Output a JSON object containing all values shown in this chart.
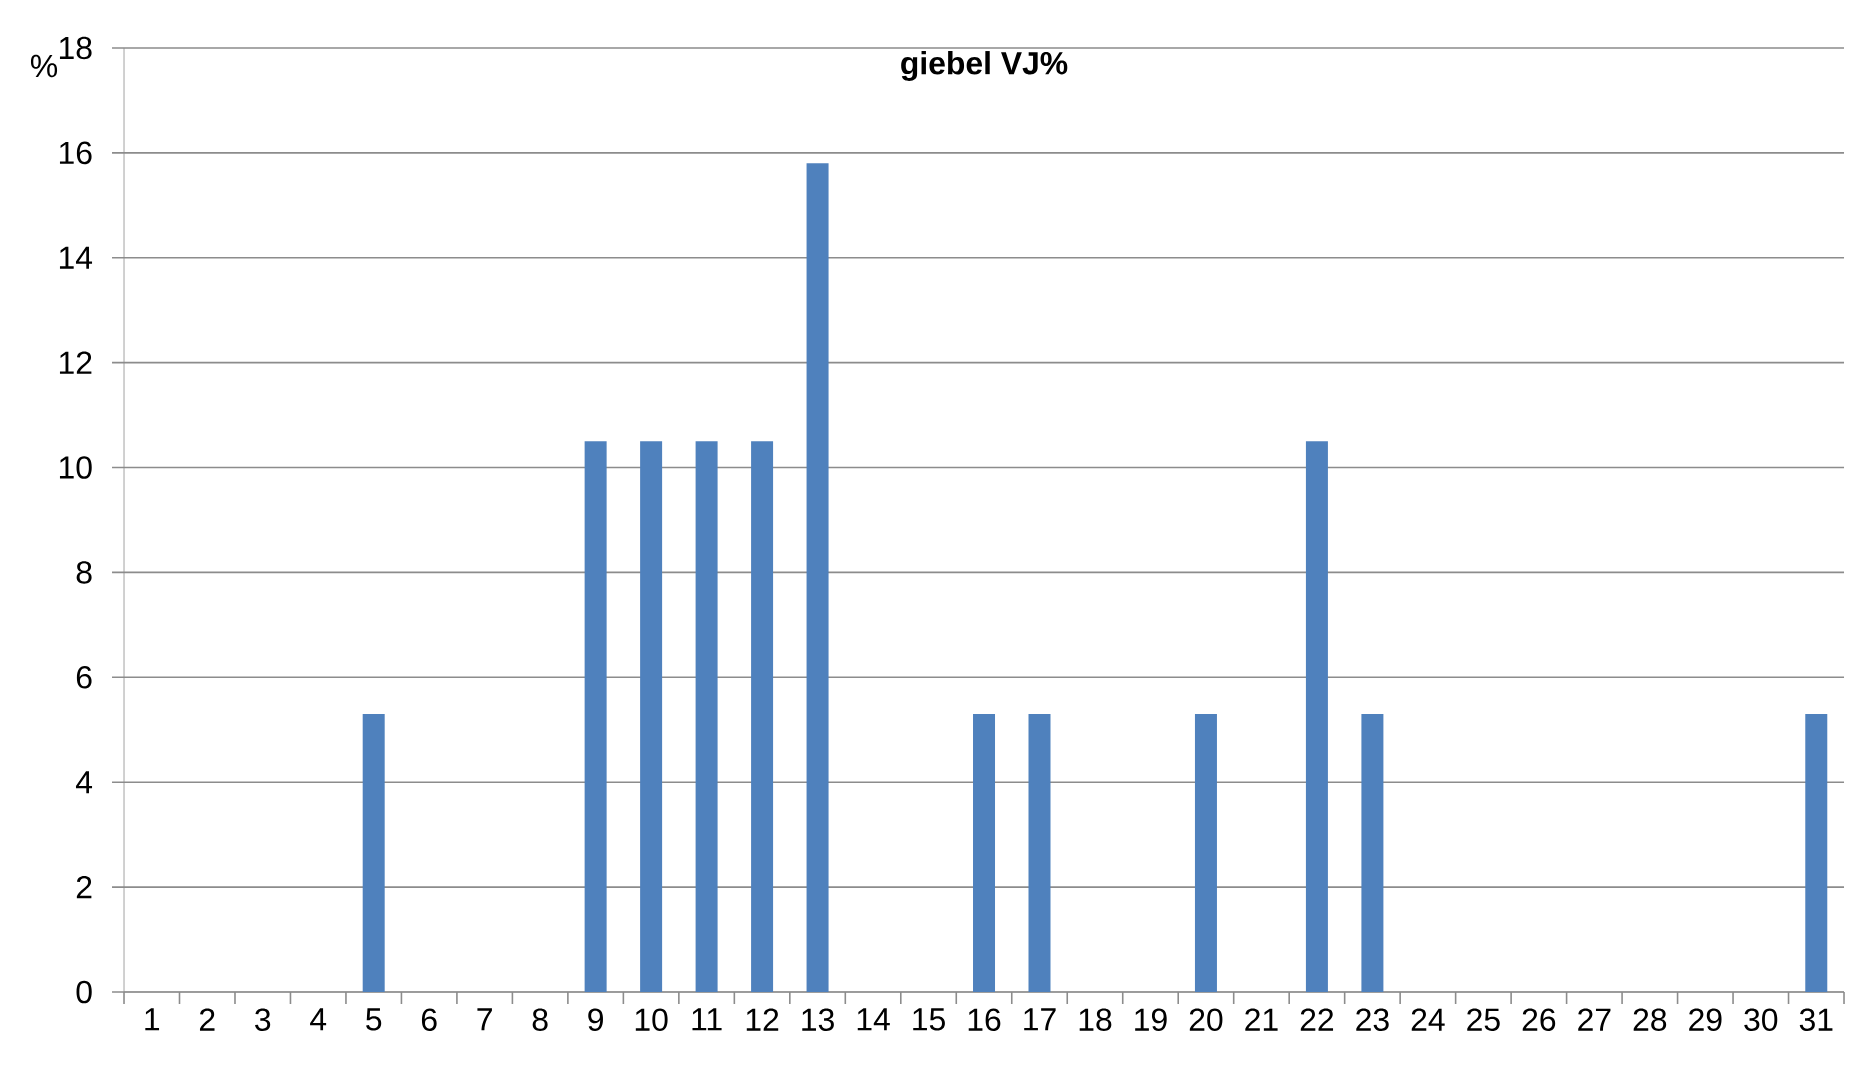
{
  "chart_data": {
    "type": "bar",
    "title": "giebel VJ%",
    "ylabel": "%",
    "categories": [
      "1",
      "2",
      "3",
      "4",
      "5",
      "6",
      "7",
      "8",
      "9",
      "10",
      "11",
      "12",
      "13",
      "14",
      "15",
      "16",
      "17",
      "18",
      "19",
      "20",
      "21",
      "22",
      "23",
      "24",
      "25",
      "26",
      "27",
      "28",
      "29",
      "30",
      "31"
    ],
    "values": [
      0,
      0,
      0,
      0,
      5.3,
      0,
      0,
      0,
      10.5,
      10.5,
      10.5,
      10.5,
      15.8,
      0,
      0,
      5.3,
      5.3,
      0,
      0,
      5.3,
      0,
      10.5,
      5.3,
      0,
      0,
      0,
      0,
      0,
      0,
      0,
      5.3
    ],
    "color": "#4f81bd",
    "ylim": [
      0,
      18
    ],
    "yticks": [
      0,
      2,
      4,
      6,
      8,
      10,
      12,
      14,
      16,
      18
    ],
    "grid": "y"
  }
}
